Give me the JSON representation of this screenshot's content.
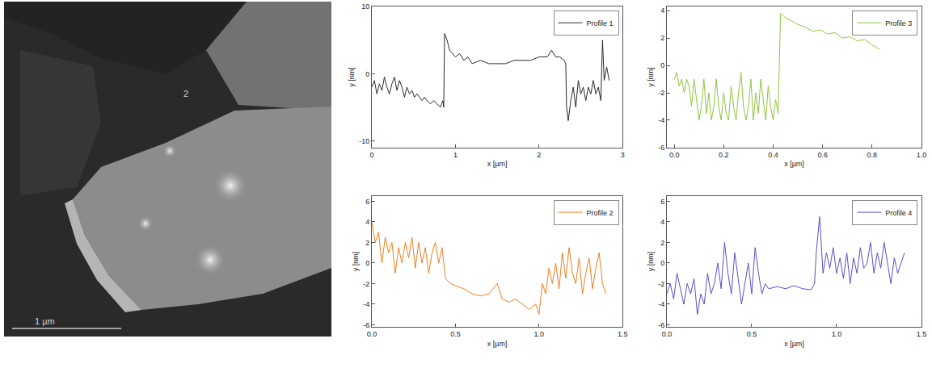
{
  "image": {
    "annotations": [
      "2"
    ],
    "scale_bar": "1 µm"
  },
  "chart_data": [
    {
      "type": "line",
      "xlabel": "x [µm]",
      "ylabel": "y [nm]",
      "legend": "upper right",
      "grid": false,
      "xlim": [
        0,
        3
      ],
      "xticks": [
        0,
        1,
        2,
        3
      ],
      "ylim": [
        -11,
        10
      ],
      "yticks": [
        -10,
        0,
        10
      ],
      "x": [
        0,
        0.03,
        0.06,
        0.09,
        0.12,
        0.15,
        0.18,
        0.21,
        0.24,
        0.27,
        0.3,
        0.33,
        0.36,
        0.39,
        0.42,
        0.45,
        0.48,
        0.51,
        0.54,
        0.57,
        0.6,
        0.63,
        0.66,
        0.7,
        0.74,
        0.78,
        0.82,
        0.85,
        0.86,
        0.87,
        0.9,
        0.93,
        0.97,
        1.0,
        1.05,
        1.1,
        1.15,
        1.2,
        1.3,
        1.4,
        1.5,
        1.6,
        1.7,
        1.8,
        1.9,
        2.0,
        2.1,
        2.15,
        2.2,
        2.25,
        2.3,
        2.32,
        2.33,
        2.35,
        2.38,
        2.41,
        2.44,
        2.47,
        2.5,
        2.53,
        2.56,
        2.59,
        2.62,
        2.65,
        2.68,
        2.71,
        2.74,
        2.76,
        2.78,
        2.81,
        2.84
      ],
      "series": [
        {
          "name": "Profile 1",
          "color": "#2b2b2b",
          "values": [
            -2,
            -1,
            -3,
            -1.5,
            -2.5,
            -0.5,
            -2,
            -3,
            -1.5,
            -0.5,
            -2.5,
            -1,
            -2,
            -3.5,
            -2,
            -3,
            -2.5,
            -3.5,
            -3,
            -3.5,
            -4,
            -3.5,
            -4,
            -4.5,
            -4,
            -4.5,
            -5,
            -4,
            -5,
            6,
            5,
            3.5,
            3,
            2.5,
            3,
            2,
            2.5,
            1.5,
            2,
            1.5,
            1.5,
            1.5,
            2,
            2,
            2,
            2.5,
            2.5,
            3.5,
            2.5,
            2.5,
            2,
            1.5,
            -5,
            -7,
            -4,
            -2,
            -5,
            -1,
            -3,
            -2,
            -4,
            -2,
            -3,
            -1,
            -3,
            -2,
            -4,
            5,
            -1,
            1,
            -1
          ]
        }
      ]
    },
    {
      "type": "line",
      "xlabel": "x [µm]",
      "ylabel": "y [nm]",
      "legend": "upper right",
      "grid": false,
      "xlim": [
        -0.03,
        1.0
      ],
      "xticks": [
        {
          "value": 0,
          "label": "0.0"
        },
        0.2,
        0.4,
        0.6,
        0.8,
        {
          "value": 1,
          "label": "1.0"
        }
      ],
      "ylim": [
        -6,
        4.3
      ],
      "yticks": [
        -6,
        -4,
        -2,
        0,
        2,
        4
      ],
      "x": [
        0,
        0.01,
        0.02,
        0.03,
        0.04,
        0.05,
        0.06,
        0.07,
        0.08,
        0.09,
        0.1,
        0.11,
        0.12,
        0.13,
        0.14,
        0.15,
        0.16,
        0.17,
        0.18,
        0.19,
        0.2,
        0.21,
        0.22,
        0.23,
        0.24,
        0.25,
        0.26,
        0.27,
        0.28,
        0.29,
        0.3,
        0.31,
        0.32,
        0.33,
        0.34,
        0.35,
        0.36,
        0.37,
        0.38,
        0.39,
        0.4,
        0.41,
        0.42,
        0.43,
        0.45,
        0.48,
        0.5,
        0.53,
        0.56,
        0.59,
        0.62,
        0.65,
        0.68,
        0.71,
        0.74,
        0.77,
        0.8,
        0.83
      ],
      "series": [
        {
          "name": "Profile 3",
          "color": "#8cc63f",
          "values": [
            -1,
            -0.5,
            -1.5,
            -1,
            -2,
            -1,
            -1.5,
            -3,
            -1,
            -2.5,
            -4,
            -3,
            -1,
            -3.5,
            -2,
            -4,
            -3,
            -1,
            -3,
            -4,
            -2,
            -3.5,
            -4,
            -1.5,
            -3,
            -4,
            -2,
            -0.5,
            -3,
            -4,
            -3,
            -1,
            -4,
            -2,
            -3.5,
            -1,
            -2.5,
            -4,
            -1.5,
            -3,
            -4,
            -2.5,
            -3.5,
            3.8,
            3.5,
            3.2,
            3,
            2.8,
            2.5,
            2.6,
            2.3,
            2.4,
            2,
            2.1,
            1.8,
            1.9,
            1.5,
            1.2
          ]
        }
      ]
    },
    {
      "type": "line",
      "xlabel": "x [µm]",
      "ylabel": "y [nm]",
      "legend": "upper right",
      "grid": false,
      "xlim": [
        0,
        1.5
      ],
      "xticks": [
        {
          "value": 0,
          "label": "0.0"
        },
        0.5,
        {
          "value": 1,
          "label": "1.0"
        },
        1.5
      ],
      "ylim": [
        -6.2,
        6.5
      ],
      "yticks": [
        -6,
        -4,
        -2,
        0,
        2,
        4,
        6
      ],
      "x": [
        0,
        0.02,
        0.04,
        0.06,
        0.08,
        0.1,
        0.12,
        0.14,
        0.16,
        0.18,
        0.2,
        0.22,
        0.24,
        0.26,
        0.28,
        0.3,
        0.32,
        0.34,
        0.36,
        0.38,
        0.4,
        0.42,
        0.44,
        0.47,
        0.5,
        0.55,
        0.6,
        0.65,
        0.7,
        0.75,
        0.78,
        0.82,
        0.86,
        0.9,
        0.94,
        0.98,
        1.0,
        1.02,
        1.04,
        1.06,
        1.08,
        1.1,
        1.12,
        1.14,
        1.16,
        1.18,
        1.2,
        1.22,
        1.24,
        1.26,
        1.28,
        1.3,
        1.32,
        1.34,
        1.36,
        1.38,
        1.4
      ],
      "series": [
        {
          "name": "Profile 2",
          "color": "#f07f1e",
          "values": [
            4,
            2,
            3,
            0,
            2.5,
            1,
            2,
            -1,
            1.5,
            0,
            2,
            0.5,
            2.5,
            -0.5,
            2,
            0,
            1.5,
            -1,
            1,
            2,
            0,
            1.5,
            -1.5,
            -2,
            -2.2,
            -2.5,
            -3,
            -3.2,
            -3,
            -2,
            -3.5,
            -3.8,
            -3.5,
            -4,
            -4.5,
            -4,
            -5,
            -2,
            -3,
            -0.5,
            -2,
            0,
            -2.5,
            1,
            -1.5,
            1.5,
            -1,
            -2,
            0.5,
            -3,
            -1,
            0.5,
            -2.5,
            -0.5,
            1,
            -2,
            -3
          ]
        }
      ]
    },
    {
      "type": "line",
      "xlabel": "x [µm]",
      "ylabel": "y [nm]",
      "legend": "upper right",
      "grid": false,
      "xlim": [
        0,
        1.5
      ],
      "xticks": [
        {
          "value": 0,
          "label": "0.0"
        },
        0.5,
        {
          "value": 1,
          "label": "1.0"
        },
        1.5
      ],
      "ylim": [
        -6.2,
        6.5
      ],
      "yticks": [
        -6,
        -4,
        -2,
        0,
        2,
        4,
        6
      ],
      "x": [
        0,
        0.02,
        0.04,
        0.06,
        0.08,
        0.1,
        0.12,
        0.14,
        0.16,
        0.18,
        0.2,
        0.22,
        0.24,
        0.26,
        0.28,
        0.3,
        0.32,
        0.34,
        0.36,
        0.38,
        0.4,
        0.42,
        0.44,
        0.46,
        0.48,
        0.5,
        0.52,
        0.54,
        0.56,
        0.58,
        0.6,
        0.65,
        0.7,
        0.75,
        0.8,
        0.85,
        0.87,
        0.88,
        0.9,
        0.92,
        0.94,
        0.96,
        0.98,
        1.0,
        1.02,
        1.04,
        1.06,
        1.08,
        1.1,
        1.12,
        1.14,
        1.16,
        1.18,
        1.2,
        1.22,
        1.24,
        1.26,
        1.28,
        1.3,
        1.32,
        1.34,
        1.36,
        1.38,
        1.4
      ],
      "series": [
        {
          "name": "Profile 4",
          "color": "#5a4fcf",
          "values": [
            -3,
            -2,
            -3.5,
            -1,
            -2.5,
            -4,
            -2,
            -3,
            -1.5,
            -5,
            -3,
            -4,
            -1,
            -3,
            -2,
            0,
            -2.5,
            2,
            -1,
            -3,
            1,
            -1.5,
            -4,
            -2,
            0,
            -3,
            1.5,
            -1,
            -3,
            -2,
            -2.5,
            -2.3,
            -2.5,
            -2.2,
            -2.5,
            -2.6,
            -2,
            1,
            4.5,
            -1,
            1,
            -0.5,
            1.5,
            -1,
            0.5,
            -1.5,
            1,
            -2,
            0.5,
            -1,
            1.5,
            -0.5,
            0,
            2,
            -1,
            1,
            -0.5,
            2,
            0,
            -2,
            0.5,
            -1,
            0,
            1
          ]
        }
      ]
    }
  ]
}
